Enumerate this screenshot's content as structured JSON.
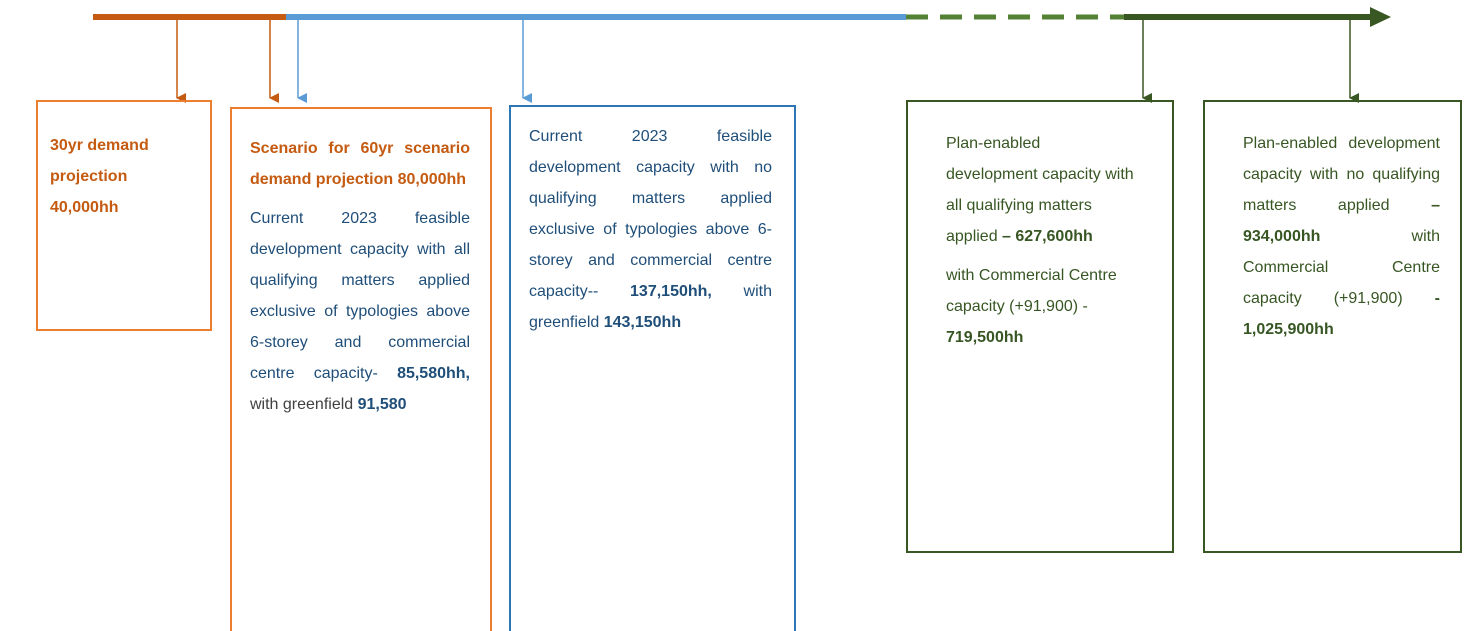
{
  "boxes": [
    {
      "paragraphs": [
        [
          "30yr demand projection 40,000hh"
        ]
      ]
    },
    {
      "paragraphs": [
        [
          "Scenario for 60yr scenario demand projection 80,000hh"
        ],
        [
          "Current 2023 feasible development capacity with all qualifying matters applied exclusive of typologies above 6-storey and commercial centre capacity- ",
          "85,580hh,",
          " with greenfield ",
          "91,580"
        ]
      ]
    },
    {
      "paragraphs": [
        [
          "Current 2023 feasible development capacity with no qualifying matters applied exclusive of typologies above 6-storey and commercial centre capacity-- ",
          "137,150hh,",
          " with greenfield ",
          "143,150hh"
        ]
      ]
    },
    {
      "paragraphs": [
        [
          "Plan-enabled development capacity with all qualifying matters applied ",
          "– 627,600hh"
        ],
        [
          "with Commercial Centre capacity (+91,900) - ",
          "719,500hh"
        ]
      ]
    },
    {
      "paragraphs": [
        [
          "Plan-enabled development capacity with no qualifying matters applied ",
          "– 934,000hh",
          " with Commercial Centre capacity (+91,900) ",
          "- 1,025,900hh"
        ]
      ]
    }
  ]
}
